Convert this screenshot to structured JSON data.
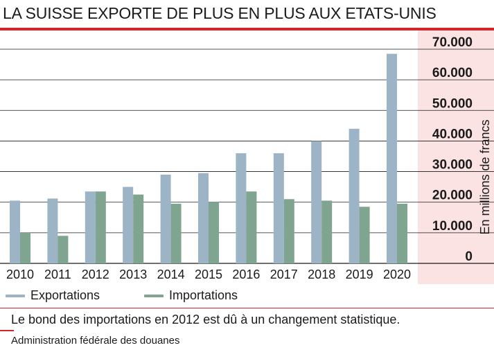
{
  "title": "LA SUISSE EXPORTE DE PLUS EN PLUS AUX ETATS-UNIS",
  "note": "Le bond des importations en 2012 est dû à un changement statistique.",
  "source": "Administration fédérale des douanes",
  "colors": {
    "title_rule": "#d3262c",
    "exports": "#9db4c7",
    "imports": "#7fa590",
    "axis_panel": "#fbe3e3",
    "grid": "#1a1a1a"
  },
  "chart_data": {
    "type": "bar",
    "title": "LA SUISSE EXPORTE DE PLUS EN PLUS AUX ETATS-UNIS",
    "categories": [
      "2010",
      "2011",
      "2012",
      "2013",
      "2014",
      "2015",
      "2016",
      "2017",
      "2018",
      "2019",
      "2020"
    ],
    "series": [
      {
        "name": "Exportations",
        "color": "#9db4c7",
        "values": [
          20500,
          21200,
          23500,
          25000,
          29000,
          29500,
          36000,
          36000,
          40000,
          44000,
          68500
        ]
      },
      {
        "name": "Importations",
        "color": "#7fa590",
        "values": [
          10000,
          9000,
          23500,
          22500,
          19500,
          20000,
          23500,
          21000,
          20500,
          18500,
          19500
        ]
      }
    ],
    "ylabel": "En millions de francs",
    "yticks": [
      "0",
      "10.000",
      "20.000",
      "30.000",
      "40.000",
      "50.000",
      "60.000",
      "70.000"
    ],
    "ytick_values": [
      0,
      10000,
      20000,
      30000,
      40000,
      50000,
      60000,
      70000
    ],
    "ylim": [
      0,
      70000
    ],
    "grid": true,
    "legend_position": "bottom-left",
    "axis_position": "right"
  }
}
